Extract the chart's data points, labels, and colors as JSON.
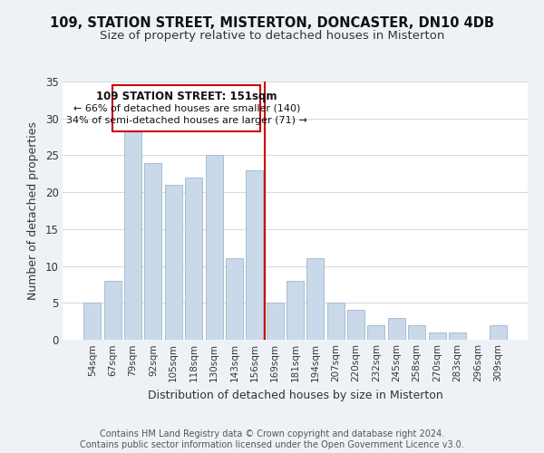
{
  "title": "109, STATION STREET, MISTERTON, DONCASTER, DN10 4DB",
  "subtitle": "Size of property relative to detached houses in Misterton",
  "xlabel": "Distribution of detached houses by size in Misterton",
  "ylabel": "Number of detached properties",
  "bar_labels": [
    "54sqm",
    "67sqm",
    "79sqm",
    "92sqm",
    "105sqm",
    "118sqm",
    "130sqm",
    "143sqm",
    "156sqm",
    "169sqm",
    "181sqm",
    "194sqm",
    "207sqm",
    "220sqm",
    "232sqm",
    "245sqm",
    "258sqm",
    "270sqm",
    "283sqm",
    "296sqm",
    "309sqm"
  ],
  "bar_values": [
    5,
    8,
    29,
    24,
    21,
    22,
    25,
    11,
    23,
    5,
    8,
    11,
    5,
    4,
    2,
    3,
    2,
    1,
    1,
    0,
    2
  ],
  "bar_color": "#c9d9ea",
  "bar_edge_color": "#a8bdd0",
  "vline_x": 8.5,
  "vline_color": "#cc0000",
  "annotation_title": "109 STATION STREET: 151sqm",
  "annotation_line1": "← 66% of detached houses are smaller (140)",
  "annotation_line2": "34% of semi-detached houses are larger (71) →",
  "annotation_box_color": "#ffffff",
  "annotation_box_edge": "#cc0000",
  "ylim": [
    0,
    35
  ],
  "yticks": [
    0,
    5,
    10,
    15,
    20,
    25,
    30,
    35
  ],
  "footer1": "Contains HM Land Registry data © Crown copyright and database right 2024.",
  "footer2": "Contains public sector information licensed under the Open Government Licence v3.0.",
  "bg_color": "#eef2f7",
  "plot_bg_color": "#ffffff",
  "grid_color": "#d0dce8",
  "title_fontsize": 10.5,
  "subtitle_fontsize": 9.5,
  "footer_fontsize": 7.0,
  "ann_title_fontsize": 8.5,
  "ann_text_fontsize": 8.0
}
